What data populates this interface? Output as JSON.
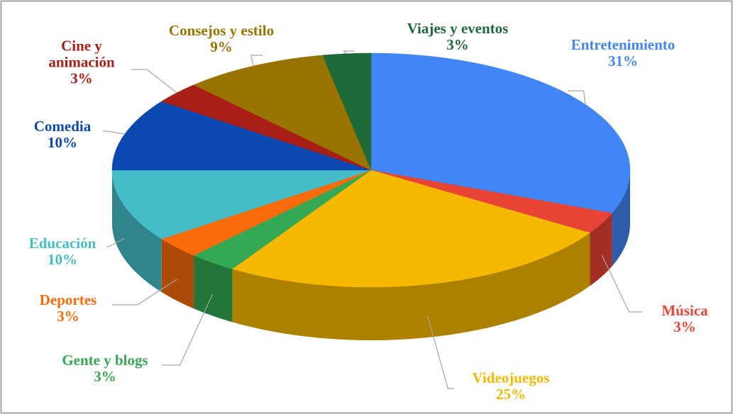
{
  "chart_data": {
    "type": "pie3d",
    "categories": [
      "Entretenimiento",
      "Música",
      "Videojuegos",
      "Gente y blogs",
      "Deportes",
      "Educación",
      "Comedia",
      "Cine y animación",
      "Consejos y estilo",
      "Viajes y eventos"
    ],
    "values": [
      31,
      3,
      25,
      3,
      3,
      10,
      10,
      3,
      9,
      3
    ],
    "value_labels": [
      "31%",
      "3%",
      "25%",
      "3%",
      "3%",
      "10%",
      "10%",
      "3%",
      "9%",
      "3%"
    ],
    "colors": [
      "#4285f4",
      "#e84335",
      "#f6b900",
      "#34a853",
      "#fa6b0c",
      "#45bdc6",
      "#0b48b2",
      "#a81f16",
      "#997300",
      "#1e6a39"
    ]
  }
}
